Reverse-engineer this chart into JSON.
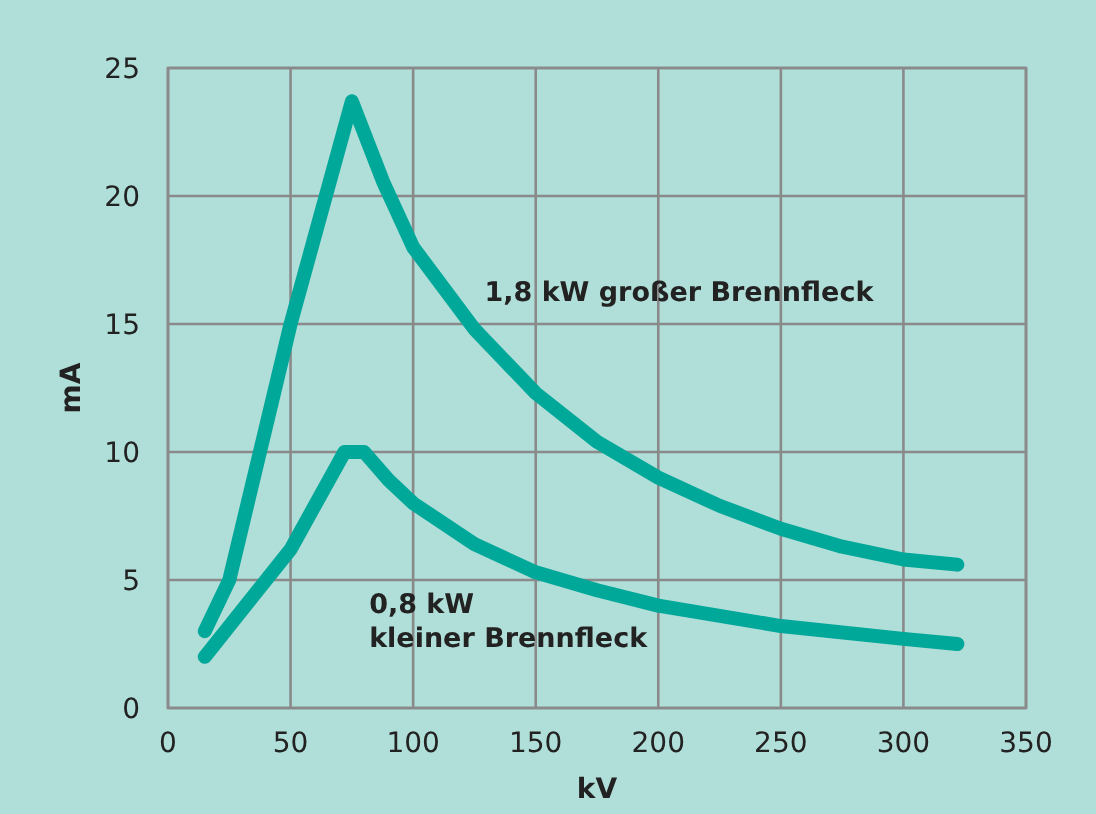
{
  "chart_data": {
    "type": "line",
    "xlabel": "kV",
    "ylabel": "mA",
    "xlim": [
      0,
      350
    ],
    "ylim": [
      0,
      25
    ],
    "xticks": [
      0,
      50,
      100,
      150,
      200,
      250,
      300,
      350
    ],
    "yticks": [
      0,
      5,
      10,
      15,
      20,
      25
    ],
    "grid": true,
    "legend": false,
    "marker": "none",
    "line_style": "solid",
    "series": [
      {
        "name": "1,8 kW großer Brennfleck",
        "color": "#00a89a",
        "x": [
          15,
          25,
          50,
          75,
          88,
          100,
          125,
          150,
          175,
          200,
          225,
          250,
          275,
          300,
          322
        ],
        "values": [
          3,
          5,
          15,
          23.7,
          20.5,
          18,
          14.8,
          12.3,
          10.4,
          9,
          7.9,
          7,
          6.3,
          5.8,
          5.6
        ]
      },
      {
        "name": "0,8 kW\nkleiner Brennfleck",
        "color": "#00a89a",
        "x": [
          15,
          50,
          72,
          80,
          90,
          100,
          125,
          150,
          175,
          200,
          250,
          300,
          322
        ],
        "values": [
          2,
          6.2,
          10,
          10,
          8.9,
          8,
          6.4,
          5.3,
          4.6,
          4,
          3.2,
          2.7,
          2.5
        ]
      }
    ]
  }
}
